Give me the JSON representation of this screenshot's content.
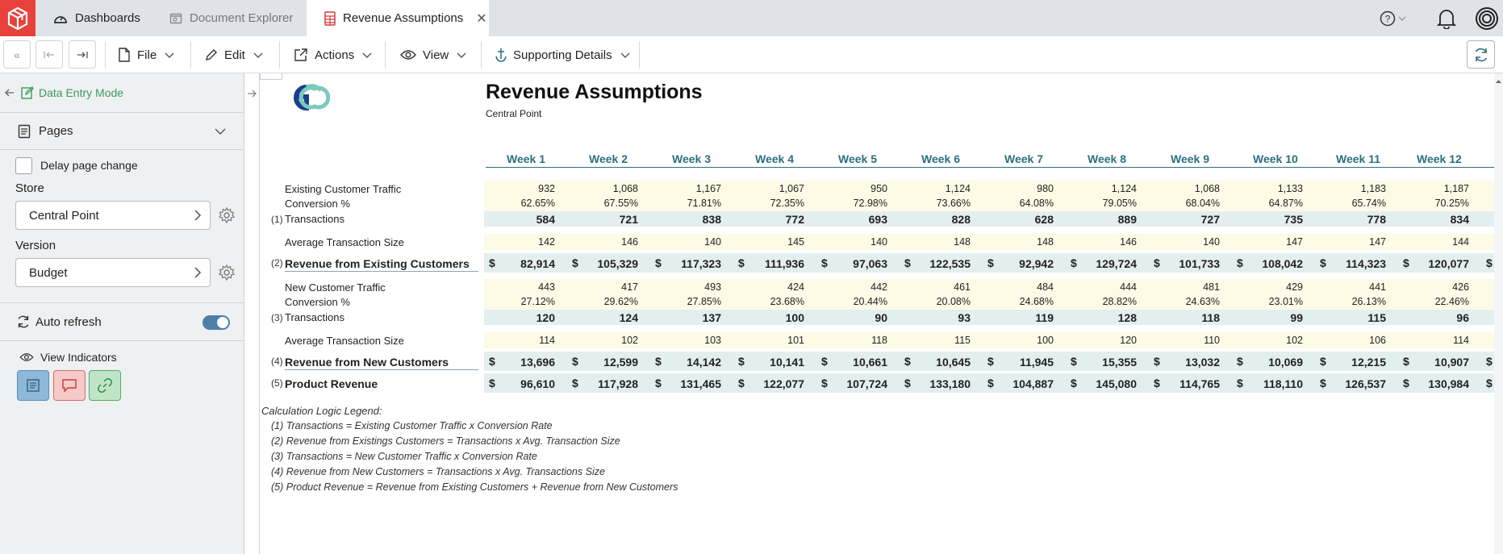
{
  "tabs": [
    {
      "label": "Dashboards",
      "icon": "dashboard-icon",
      "state": "normal"
    },
    {
      "label": "Document Explorer",
      "icon": "document-explorer-icon",
      "state": "inactive"
    },
    {
      "label": "Revenue Assumptions",
      "icon": "spreadsheet-icon",
      "state": "active"
    }
  ],
  "toolbar": {
    "file_label": "File",
    "edit_label": "Edit",
    "actions_label": "Actions",
    "view_label": "View",
    "supporting_label": "Supporting Details"
  },
  "sidebar": {
    "mode_label": "Data Entry Mode",
    "pages_label": "Pages",
    "delay_label": "Delay page change",
    "store_label": "Store",
    "store_value": "Central Point",
    "version_label": "Version",
    "version_value": "Budget",
    "autorefresh_label": "Auto refresh",
    "autorefresh_on": true,
    "indicators_label": "View Indicators"
  },
  "report": {
    "title": "Revenue Assumptions",
    "subtitle": "Central Point",
    "weeks": [
      "Week 1",
      "Week 2",
      "Week 3",
      "Week 4",
      "Week 5",
      "Week 6",
      "Week 7",
      "Week 8",
      "Week 9",
      "Week 10",
      "Week 11",
      "Week 12"
    ],
    "rows": [
      {
        "num": "",
        "label": "Existing Customer Traffic",
        "style": "normal",
        "band": "yellow",
        "values": [
          "932",
          "1,068",
          "1,167",
          "1,067",
          "950",
          "1,124",
          "980",
          "1,124",
          "1,068",
          "1,133",
          "1,183",
          "1,187"
        ]
      },
      {
        "num": "",
        "label": "Conversion %",
        "style": "normal",
        "band": "yellow",
        "values": [
          "62.65%",
          "67.55%",
          "71.81%",
          "72.35%",
          "72.98%",
          "73.66%",
          "64.08%",
          "79.05%",
          "68.04%",
          "64.87%",
          "65.74%",
          "70.25%"
        ]
      },
      {
        "num": "(1)",
        "label": "Transactions",
        "style": "normal",
        "band": "teal",
        "bold_values": true,
        "values": [
          "584",
          "721",
          "838",
          "772",
          "693",
          "828",
          "628",
          "889",
          "727",
          "735",
          "778",
          "834"
        ]
      },
      {
        "num": "",
        "label": "Average Transaction Size",
        "style": "normal",
        "band": "yellow",
        "values": [
          "142",
          "146",
          "140",
          "145",
          "140",
          "148",
          "148",
          "146",
          "140",
          "147",
          "147",
          "144"
        ]
      },
      {
        "num": "(2)",
        "label": "Revenue from Existing Customers",
        "style": "bold",
        "band": "teal",
        "bold_values": true,
        "dollar": true,
        "values": [
          "82,914",
          "105,329",
          "117,323",
          "111,936",
          "97,063",
          "122,535",
          "92,942",
          "129,724",
          "101,733",
          "108,042",
          "114,323",
          "120,077"
        ]
      },
      {
        "num": "",
        "label": "New Customer Traffic",
        "style": "normal",
        "band": "yellow",
        "values": [
          "443",
          "417",
          "493",
          "424",
          "442",
          "461",
          "484",
          "444",
          "481",
          "429",
          "441",
          "426"
        ]
      },
      {
        "num": "",
        "label": "Conversion %",
        "style": "normal",
        "band": "yellow",
        "values": [
          "27.12%",
          "29.62%",
          "27.85%",
          "23.68%",
          "20.44%",
          "20.08%",
          "24.68%",
          "28.82%",
          "24.63%",
          "23.01%",
          "26.13%",
          "22.46%"
        ]
      },
      {
        "num": "(3)",
        "label": "Transactions",
        "style": "normal",
        "band": "teal",
        "bold_values": true,
        "values": [
          "120",
          "124",
          "137",
          "100",
          "90",
          "93",
          "119",
          "128",
          "118",
          "99",
          "115",
          "96"
        ]
      },
      {
        "num": "",
        "label": "Average Transaction Size",
        "style": "normal",
        "band": "yellow",
        "values": [
          "114",
          "102",
          "103",
          "101",
          "118",
          "115",
          "100",
          "120",
          "110",
          "102",
          "106",
          "114"
        ]
      },
      {
        "num": "(4)",
        "label": "Revenue from New Customers",
        "style": "bold",
        "band": "teal",
        "bold_values": true,
        "dollar": true,
        "values": [
          "13,696",
          "12,599",
          "14,142",
          "10,141",
          "10,661",
          "10,645",
          "11,945",
          "15,355",
          "13,032",
          "10,069",
          "12,215",
          "10,907"
        ]
      },
      {
        "num": "(5)",
        "label": "Product Revenue",
        "style": "bold",
        "band": "teal",
        "bold_values": true,
        "dollar": true,
        "values": [
          "96,610",
          "117,928",
          "131,465",
          "122,077",
          "107,724",
          "133,180",
          "104,887",
          "145,080",
          "114,765",
          "118,110",
          "126,537",
          "130,984"
        ]
      }
    ],
    "dollar_sign": "$",
    "legend_title": "Calculation Logic Legend:",
    "legend": [
      "(1) Transactions = Existing Customer Traffic x Conversion Rate",
      "(2) Revenue from Existings Customers = Transactions x Avg. Transaction Size",
      "(3) Transactions = New Customer Traffic x Conversion Rate",
      "(4) Revenue from New Customers = Transactions x Avg. Transactions Size",
      "(5) Product Revenue = Revenue from Existing Customers + Revenue from New Customers"
    ]
  },
  "colors": {
    "accent": "#2a6f7f",
    "brand_red": "#e8413c",
    "yellow_band": "#fdfbe6",
    "teal_band": "#e3eeef",
    "mode_green": "#3d9a5c"
  }
}
